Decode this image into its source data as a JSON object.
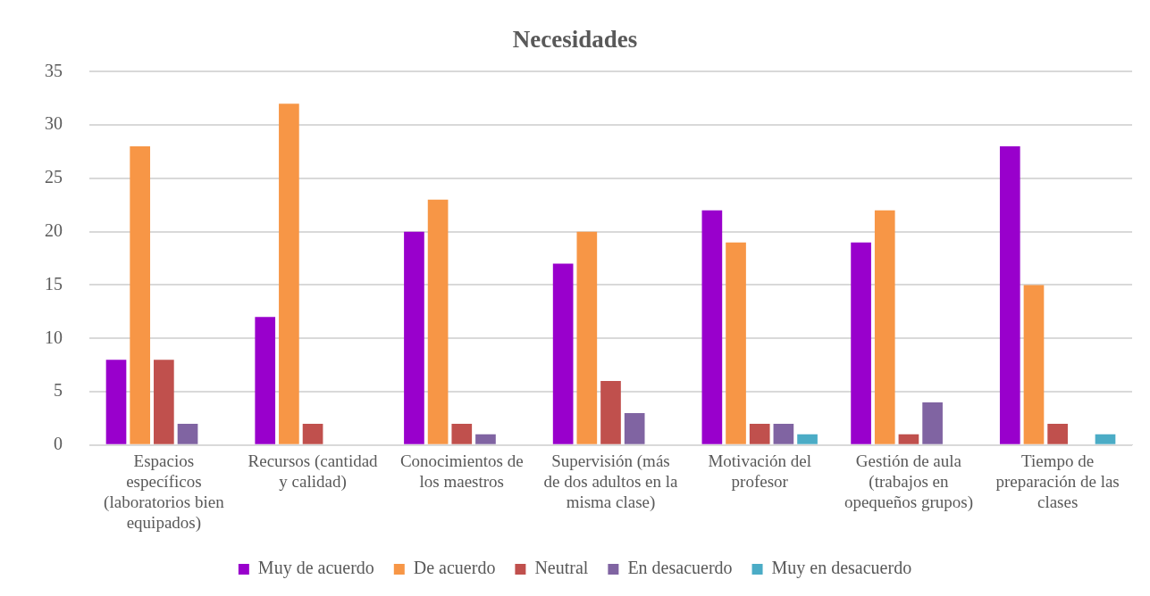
{
  "chart_data": {
    "type": "bar",
    "title": "Necesidades",
    "categories": [
      "Espacios específicos (laboratorios bien equipados)",
      "Recursos (cantidad y calidad)",
      "Conocimientos de los maestros",
      "Supervisión (más de dos adultos en la misma clase)",
      "Motivación del profesor",
      "Gestión de aula (trabajos en opequeños grupos)",
      "Tiempo de preparación de las clases"
    ],
    "series": [
      {
        "name": "Muy de acuerdo",
        "color": "#9900cc",
        "values": [
          8,
          12,
          20,
          17,
          22,
          19,
          28
        ]
      },
      {
        "name": "De acuerdo",
        "color": "#f79646",
        "values": [
          28,
          32,
          23,
          20,
          19,
          22,
          15
        ]
      },
      {
        "name": "Neutral",
        "color": "#c0504d",
        "values": [
          8,
          2,
          2,
          6,
          2,
          1,
          2
        ]
      },
      {
        "name": "En desacuerdo",
        "color": "#8064a2",
        "values": [
          2,
          null,
          1,
          3,
          2,
          4,
          null
        ]
      },
      {
        "name": "Muy en desacuerdo",
        "color": "#4bacc6",
        "values": [
          null,
          null,
          null,
          null,
          1,
          null,
          1
        ]
      }
    ],
    "ylim": [
      0,
      35
    ],
    "yticks": [
      0,
      5,
      10,
      15,
      20,
      25,
      30,
      35
    ],
    "grid": "y",
    "legend": "bottom"
  }
}
